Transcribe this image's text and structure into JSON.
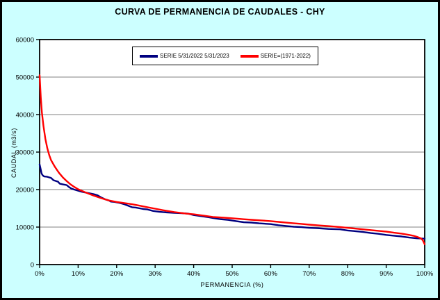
{
  "chart_data": {
    "type": "line",
    "title": "CURVA DE PERMANENCIA DE CAUDALES - CHY",
    "xlabel": "PERMANENCIA (%)",
    "ylabel": "CAUDAL (m3/s)",
    "xlim": [
      0,
      100
    ],
    "ylim": [
      0,
      60000
    ],
    "x_tick_values": [
      0,
      10,
      20,
      30,
      40,
      50,
      60,
      70,
      80,
      90,
      100
    ],
    "x_tick_labels": [
      "0%",
      "10%",
      "20%",
      "30%",
      "40%",
      "50%",
      "60%",
      "70%",
      "80%",
      "90%",
      "100%"
    ],
    "y_tick_values": [
      0,
      10000,
      20000,
      30000,
      40000,
      50000,
      60000
    ],
    "y_tick_labels": [
      "0",
      "10000",
      "20000",
      "30000",
      "40000",
      "50000",
      "60000"
    ],
    "grid": "horizontal-only",
    "legend_position": "top-center-inside",
    "colors": {
      "background": "#CCFFFF",
      "plot_bg": "#FFFFFF",
      "gridline": "#808080",
      "axis": "#000000"
    },
    "series": [
      {
        "name": "SERIE 5/31/2022 5/31/2023",
        "color": "#000080",
        "points": [
          [
            0,
            26700
          ],
          [
            0.2,
            25800
          ],
          [
            0.5,
            24300
          ],
          [
            0.8,
            23800
          ],
          [
            1.2,
            23500
          ],
          [
            2,
            23400
          ],
          [
            3,
            23100
          ],
          [
            3.6,
            22500
          ],
          [
            4.2,
            22300
          ],
          [
            4.8,
            22100
          ],
          [
            5.2,
            21600
          ],
          [
            6,
            21400
          ],
          [
            7,
            21200
          ],
          [
            7.6,
            20700
          ],
          [
            8.2,
            20300
          ],
          [
            9,
            20000
          ],
          [
            10,
            19700
          ],
          [
            11,
            19400
          ],
          [
            12,
            19200
          ],
          [
            13,
            19000
          ],
          [
            14,
            18800
          ],
          [
            15,
            18500
          ],
          [
            16,
            17900
          ],
          [
            17,
            17400
          ],
          [
            18,
            17100
          ],
          [
            18.5,
            16800
          ],
          [
            19.5,
            16700
          ],
          [
            20.5,
            16500
          ],
          [
            22,
            16100
          ],
          [
            24,
            15300
          ],
          [
            25,
            15200
          ],
          [
            26,
            15000
          ],
          [
            27,
            14800
          ],
          [
            28,
            14700
          ],
          [
            29.5,
            14300
          ],
          [
            31,
            14100
          ],
          [
            33,
            13900
          ],
          [
            35,
            13800
          ],
          [
            37,
            13700
          ],
          [
            38.5,
            13600
          ],
          [
            40,
            13200
          ],
          [
            42,
            12900
          ],
          [
            44,
            12600
          ],
          [
            45,
            12400
          ],
          [
            47,
            12100
          ],
          [
            49,
            11900
          ],
          [
            51,
            11600
          ],
          [
            53,
            11300
          ],
          [
            55,
            11200
          ],
          [
            57,
            11000
          ],
          [
            60,
            10800
          ],
          [
            62,
            10500
          ],
          [
            64,
            10300
          ],
          [
            66,
            10100
          ],
          [
            68,
            10000
          ],
          [
            70,
            9800
          ],
          [
            72,
            9700
          ],
          [
            75,
            9500
          ],
          [
            78,
            9400
          ],
          [
            80,
            9100
          ],
          [
            82,
            8900
          ],
          [
            84,
            8700
          ],
          [
            86,
            8400
          ],
          [
            88,
            8200
          ],
          [
            90,
            7900
          ],
          [
            92,
            7700
          ],
          [
            94,
            7500
          ],
          [
            96,
            7200
          ],
          [
            98,
            7000
          ],
          [
            100,
            6900
          ]
        ]
      },
      {
        "name": "SERIE=(1971-2022)",
        "color": "#FF0000",
        "points": [
          [
            0,
            50500
          ],
          [
            0.3,
            44500
          ],
          [
            0.6,
            40500
          ],
          [
            1,
            37000
          ],
          [
            1.5,
            33500
          ],
          [
            2,
            31000
          ],
          [
            2.5,
            29200
          ],
          [
            3,
            27800
          ],
          [
            4,
            26000
          ],
          [
            5,
            24500
          ],
          [
            6,
            23300
          ],
          [
            7,
            22300
          ],
          [
            8,
            21400
          ],
          [
            9,
            20700
          ],
          [
            10,
            20100
          ],
          [
            12,
            19200
          ],
          [
            14,
            18400
          ],
          [
            16,
            17700
          ],
          [
            18,
            17100
          ],
          [
            20,
            16700
          ],
          [
            22,
            16400
          ],
          [
            24,
            16100
          ],
          [
            26,
            15700
          ],
          [
            28,
            15300
          ],
          [
            30,
            14900
          ],
          [
            32,
            14500
          ],
          [
            35,
            14000
          ],
          [
            38,
            13600
          ],
          [
            40,
            13400
          ],
          [
            43,
            13000
          ],
          [
            45,
            12700
          ],
          [
            48,
            12500
          ],
          [
            50,
            12350
          ],
          [
            53,
            12100
          ],
          [
            55,
            11950
          ],
          [
            58,
            11750
          ],
          [
            60,
            11600
          ],
          [
            63,
            11300
          ],
          [
            65,
            11100
          ],
          [
            68,
            10850
          ],
          [
            70,
            10650
          ],
          [
            73,
            10400
          ],
          [
            75,
            10250
          ],
          [
            78,
            10000
          ],
          [
            80,
            9800
          ],
          [
            83,
            9500
          ],
          [
            85,
            9300
          ],
          [
            88,
            9000
          ],
          [
            90,
            8800
          ],
          [
            92,
            8500
          ],
          [
            94,
            8250
          ],
          [
            96,
            7900
          ],
          [
            97,
            7700
          ],
          [
            98,
            7400
          ],
          [
            99,
            7000
          ],
          [
            99.5,
            6500
          ],
          [
            100,
            5400
          ]
        ]
      }
    ]
  }
}
